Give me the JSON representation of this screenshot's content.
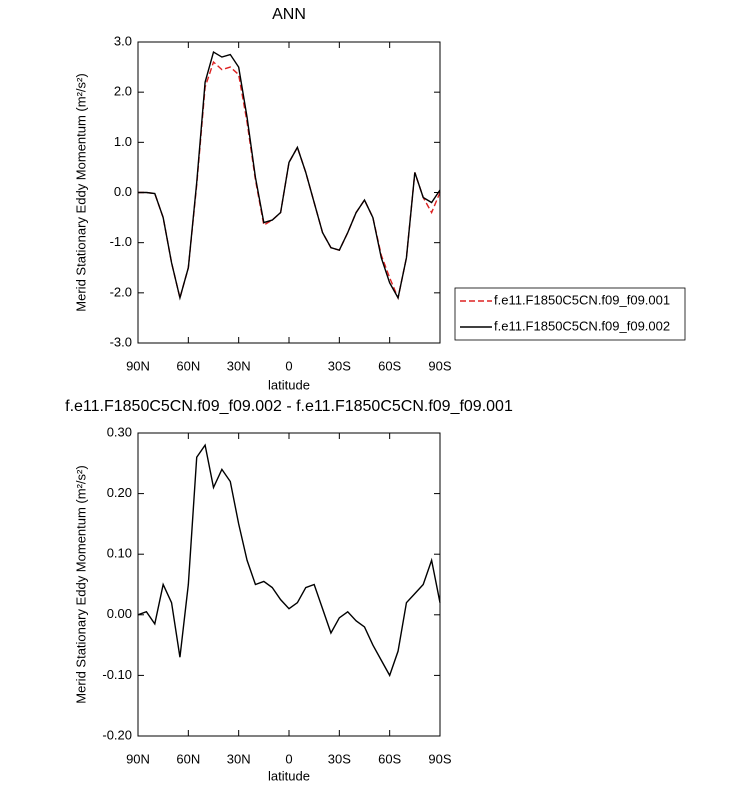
{
  "chart_data": [
    {
      "type": "line",
      "title": "ANN",
      "x_label": "latitude",
      "y_label": "Merid Stationary Eddy Momentum (m²/s²)",
      "x": [
        90,
        85,
        80,
        75,
        70,
        65,
        60,
        55,
        50,
        45,
        40,
        35,
        30,
        25,
        20,
        15,
        10,
        5,
        0,
        -5,
        -10,
        -15,
        -20,
        -25,
        -30,
        -35,
        -40,
        -45,
        -50,
        -55,
        -60,
        -65,
        -70,
        -75,
        -80,
        -85,
        -90
      ],
      "series": [
        {
          "name": "f.e11.F1850C5CN.f09_f09.001",
          "color": "#dd2222",
          "line_style": "dashed",
          "values": [
            0.0,
            0.0,
            -0.02,
            -0.5,
            -1.4,
            -2.1,
            -1.5,
            0.15,
            2.1,
            2.6,
            2.45,
            2.5,
            2.35,
            1.4,
            0.25,
            -0.65,
            -0.55,
            -0.4,
            0.6,
            0.9,
            0.4,
            -0.2,
            -0.8,
            -1.1,
            -1.15,
            -0.8,
            -0.4,
            -0.15,
            -0.5,
            -1.25,
            -1.7,
            -2.1,
            -1.3,
            0.4,
            -0.1,
            -0.4,
            0.0
          ]
        },
        {
          "name": "f.e11.F1850C5CN.f09_f09.002",
          "color": "#000000",
          "line_style": "solid",
          "values": [
            0.0,
            0.0,
            -0.02,
            -0.5,
            -1.4,
            -2.1,
            -1.5,
            0.2,
            2.2,
            2.8,
            2.7,
            2.75,
            2.5,
            1.5,
            0.3,
            -0.6,
            -0.55,
            -0.4,
            0.6,
            0.9,
            0.4,
            -0.2,
            -0.8,
            -1.1,
            -1.15,
            -0.8,
            -0.4,
            -0.15,
            -0.5,
            -1.3,
            -1.8,
            -2.1,
            -1.3,
            0.4,
            -0.1,
            -0.2,
            0.05
          ]
        }
      ],
      "xlim": [
        90,
        -90
      ],
      "xticks": [
        {
          "value": 90,
          "label": "90N"
        },
        {
          "value": 60,
          "label": "60N"
        },
        {
          "value": 30,
          "label": "30N"
        },
        0,
        {
          "value": -30,
          "label": "30S"
        },
        {
          "value": -60,
          "label": "60S"
        },
        {
          "value": -90,
          "label": "90S"
        }
      ],
      "ylim": [
        -3,
        3
      ],
      "yticks": [
        {
          "value": 3,
          "label": "3.0"
        },
        {
          "value": 2,
          "label": "2.0"
        },
        {
          "value": 1,
          "label": "1.0"
        },
        {
          "value": 0,
          "label": "0.0"
        },
        {
          "value": -1,
          "label": "-1.0"
        },
        {
          "value": -2,
          "label": "-2.0"
        },
        {
          "value": -3,
          "label": "-3.0"
        }
      ],
      "legend": "right"
    },
    {
      "type": "line",
      "title": "f.e11.F1850C5CN.f09_f09.002 - f.e11.F1850C5CN.f09_f09.001",
      "x_label": "latitude",
      "y_label": "Merid Stationary Eddy Momentum (m²/s²)",
      "x": [
        90,
        85,
        80,
        75,
        70,
        65,
        60,
        55,
        50,
        45,
        40,
        35,
        30,
        25,
        20,
        15,
        10,
        5,
        0,
        -5,
        -10,
        -15,
        -20,
        -25,
        -30,
        -35,
        -40,
        -45,
        -50,
        -55,
        -60,
        -65,
        -70,
        -75,
        -80,
        -85,
        -90
      ],
      "series": [
        {
          "color": "#000000",
          "line_style": "solid",
          "values": [
            0.0,
            0.005,
            -0.015,
            0.05,
            0.02,
            -0.07,
            0.05,
            0.26,
            0.28,
            0.21,
            0.24,
            0.22,
            0.15,
            0.09,
            0.05,
            0.055,
            0.045,
            0.025,
            0.01,
            0.02,
            0.045,
            0.05,
            0.01,
            -0.03,
            -0.005,
            0.005,
            -0.01,
            -0.02,
            -0.05,
            -0.075,
            -0.1,
            -0.06,
            0.02,
            0.035,
            0.05,
            0.09,
            0.02
          ]
        }
      ],
      "xlim": [
        90,
        -90
      ],
      "xticks": [
        {
          "value": 90,
          "label": "90N"
        },
        {
          "value": 60,
          "label": "60N"
        },
        {
          "value": 30,
          "label": "30N"
        },
        0,
        {
          "value": -30,
          "label": "30S"
        },
        {
          "value": -60,
          "label": "60S"
        },
        {
          "value": -90,
          "label": "90S"
        }
      ],
      "ylim": [
        -0.2,
        0.3
      ],
      "yticks": [
        {
          "value": 0.3,
          "label": "0.30"
        },
        {
          "value": 0.2,
          "label": "0.20"
        },
        {
          "value": 0.1,
          "label": "0.10"
        },
        {
          "value": 0,
          "label": "0.00"
        },
        {
          "value": -0.1,
          "label": "-0.10"
        },
        {
          "value": -0.2,
          "label": "-0.20"
        }
      ]
    }
  ]
}
